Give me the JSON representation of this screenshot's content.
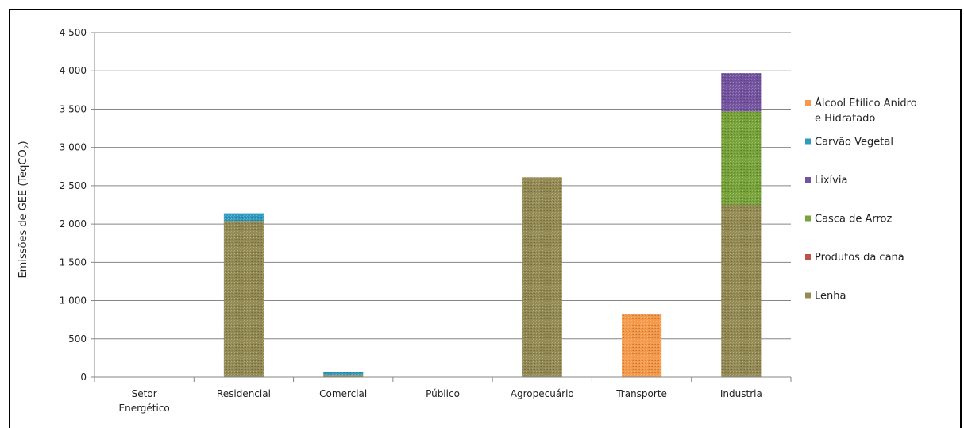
{
  "chart_data": {
    "type": "bar",
    "stacked": true,
    "ylabel": "Emissões de GEE (TeqCO",
    "ylabel_sub": "2",
    "ylabel_end": ")",
    "ylim": [
      0,
      4500
    ],
    "yticks": [
      0,
      500,
      1000,
      1500,
      2000,
      2500,
      3000,
      3500,
      4000,
      4500
    ],
    "ytick_labels": [
      "0",
      "500",
      "1 000",
      "1 500",
      "2 000",
      "2 500",
      "3 000",
      "3 500",
      "4 000",
      "4 500"
    ],
    "grid": true,
    "legend_position": "right",
    "categories": [
      [
        "Setor",
        "Energético"
      ],
      [
        "Residencial"
      ],
      [
        "Comercial"
      ],
      [
        "Público"
      ],
      [
        "Agropecuário"
      ],
      [
        "Transporte"
      ],
      [
        "Industria"
      ]
    ],
    "series": [
      {
        "name": "Lenha",
        "color": "#948a54",
        "values": [
          0,
          2040,
          30,
          0,
          2610,
          0,
          2250
        ]
      },
      {
        "name": "Produtos da cana",
        "color": "#c0504d",
        "values": [
          0,
          0,
          0,
          0,
          0,
          0,
          0
        ]
      },
      {
        "name": "Casca de Arroz",
        "color": "#77a33a",
        "values": [
          0,
          0,
          0,
          0,
          0,
          0,
          1220
        ]
      },
      {
        "name": "Lixívia",
        "color": "#7453a0",
        "values": [
          0,
          0,
          0,
          0,
          0,
          0,
          500
        ]
      },
      {
        "name": "Carvão Vegetal",
        "color": "#2f9bbf",
        "values": [
          0,
          100,
          40,
          0,
          0,
          0,
          0
        ]
      },
      {
        "name": "Álcool Etílico Anidro e Hidratado",
        "color": "#f59a4b",
        "values": [
          0,
          0,
          0,
          0,
          0,
          820,
          0
        ]
      }
    ],
    "legend": [
      {
        "series": "Álcool Etílico Anidro e Hidratado",
        "lines": [
          "Álcool Etílico Anidro",
          "e Hidratado"
        ]
      },
      {
        "series": "Carvão Vegetal",
        "lines": [
          "Carvão Vegetal"
        ]
      },
      {
        "series": "Lixívia",
        "lines": [
          "Lixívia"
        ]
      },
      {
        "series": "Casca de Arroz",
        "lines": [
          "Casca de Arroz"
        ]
      },
      {
        "series": "Produtos da cana",
        "lines": [
          "Produtos da cana"
        ]
      },
      {
        "series": "Lenha",
        "lines": [
          "Lenha"
        ]
      }
    ]
  }
}
